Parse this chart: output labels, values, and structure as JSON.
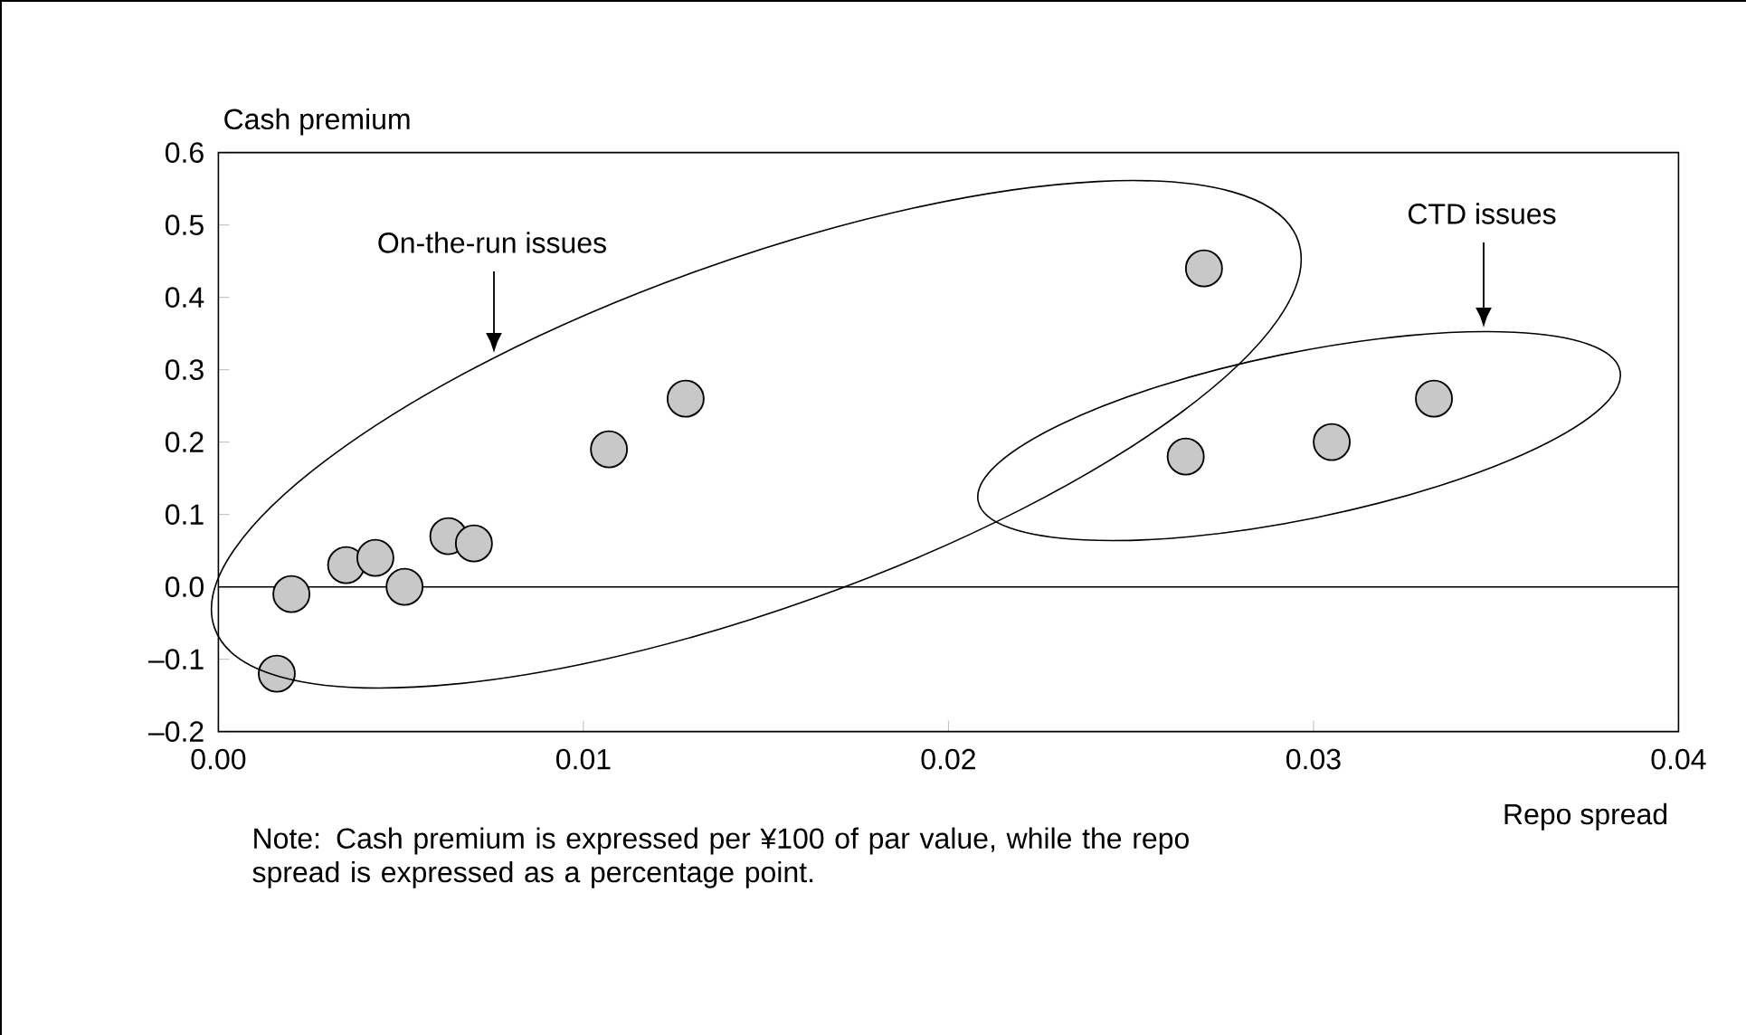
{
  "chart_data": {
    "type": "scatter",
    "x": [
      0.0016,
      0.002,
      0.0035,
      0.0043,
      0.0051,
      0.0063,
      0.007,
      0.0107,
      0.0128,
      0.027,
      0.0265,
      0.0305,
      0.0333
    ],
    "values": [
      -0.12,
      -0.01,
      0.03,
      0.04,
      0.0,
      0.07,
      0.06,
      0.19,
      0.26,
      0.44,
      0.18,
      0.2,
      0.26
    ],
    "color": "#c8c8c8",
    "marker": "circle",
    "grid": false,
    "xlabel": "Repo spread",
    "ylabel": "Cash premium",
    "xlim": [
      0,
      0.04
    ],
    "ylim": [
      -0.2,
      0.6
    ],
    "xticks": [
      {
        "value": 0,
        "label": "0.00"
      },
      {
        "value": 0.01,
        "label": "0.01"
      },
      {
        "value": 0.02,
        "label": "0.02"
      },
      {
        "value": 0.03,
        "label": "0.03"
      },
      {
        "value": 0.04,
        "label": "0.04"
      }
    ],
    "yticks": [
      {
        "value": -0.2,
        "label": "–0.2"
      },
      {
        "value": -0.1,
        "label": "–0.1"
      },
      {
        "value": 0,
        "label": "0.0"
      },
      {
        "value": 0.1,
        "label": "0.1"
      },
      {
        "value": 0.2,
        "label": "0.2"
      },
      {
        "value": 0.3,
        "label": "0.3"
      },
      {
        "value": 0.4,
        "label": "0.4"
      },
      {
        "value": 0.5,
        "label": "0.5"
      },
      {
        "value": 0.6,
        "label": "0.6"
      }
    ],
    "ref_lines": [
      {
        "axis": "y",
        "value": 0
      }
    ],
    "annotations": [
      "On-the-run issues",
      "CTD issues",
      "Note: Cash premium is expressed per ¥100 of par value, while the repo spread is expressed as a percentage point."
    ]
  }
}
